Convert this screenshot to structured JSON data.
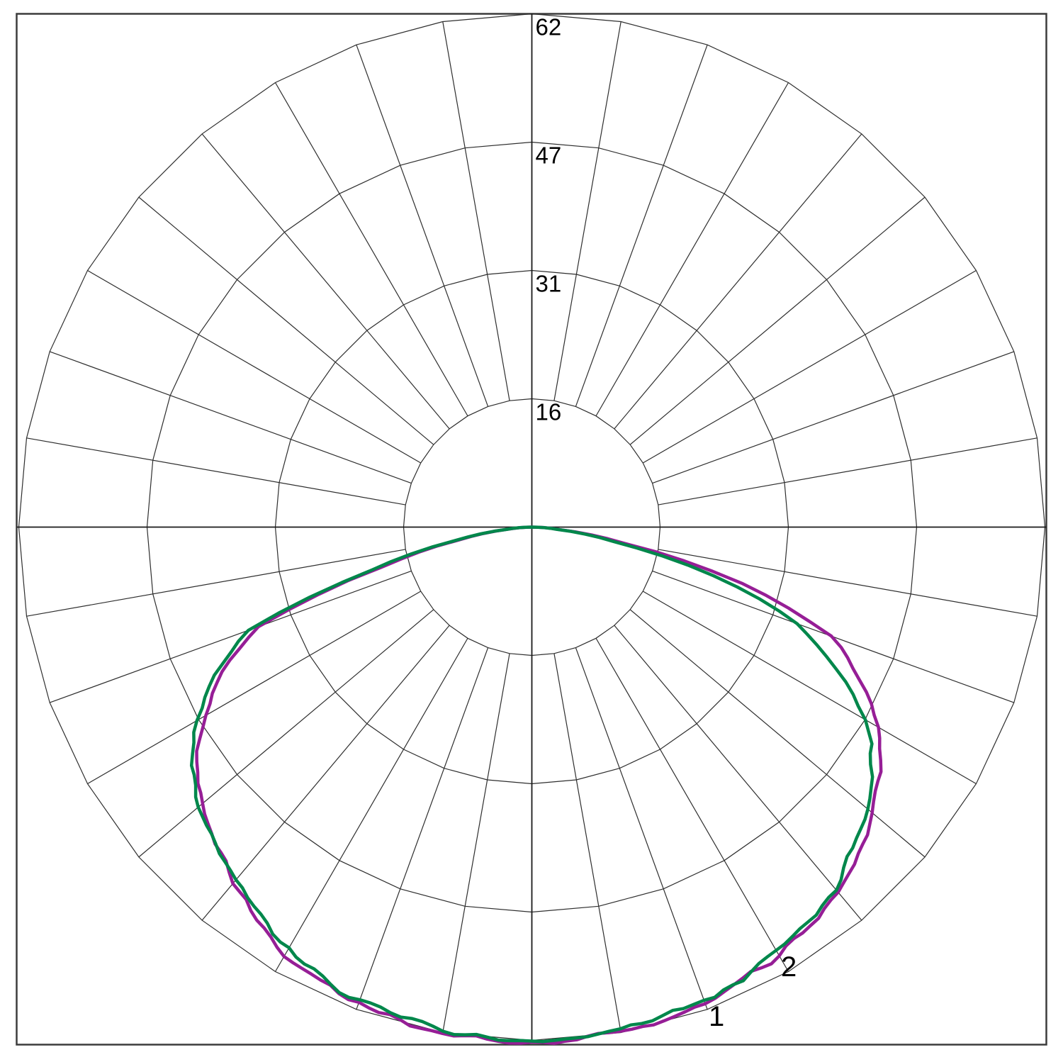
{
  "page": {
    "background": "#ffffff",
    "grid_color": "#2e2e2e",
    "axis_color": "#1a1a1a",
    "frame_color": "#3c3c3c"
  },
  "chart_data": {
    "type": "polar",
    "subtype": "photometric-intensity-distribution",
    "title": "",
    "gamma_zero_direction": "down",
    "rmax": 62,
    "ring_values": [
      15.5,
      31,
      46.5,
      62
    ],
    "ring_labels": [
      "16",
      "31",
      "47",
      "62"
    ],
    "spoke_step_deg": 10,
    "ring_facet_step_deg": 10,
    "legend_position": "none",
    "grid_on": true,
    "noise_amplitude": 0.32,
    "series": [
      {
        "name": "1",
        "color": "#961E96",
        "seed": 7,
        "keypoints": [
          [
            -90,
            0
          ],
          [
            -85,
            2.8
          ],
          [
            -80,
            9
          ],
          [
            -75,
            19
          ],
          [
            -70,
            35.3
          ],
          [
            -65,
            41.2
          ],
          [
            -60,
            45.8
          ],
          [
            -55,
            49.5
          ],
          [
            -50,
            51.8
          ],
          [
            -45,
            53.8
          ],
          [
            -40,
            56.3
          ],
          [
            -35,
            57.9
          ],
          [
            -30,
            59.6
          ],
          [
            -25,
            60.6
          ],
          [
            -20,
            61.3
          ],
          [
            -15,
            61.7
          ],
          [
            -10,
            61.9
          ],
          [
            -5,
            62
          ],
          [
            0,
            62
          ],
          [
            5,
            62
          ],
          [
            10,
            61.8
          ],
          [
            15,
            61.5
          ],
          [
            20,
            61.1
          ],
          [
            25,
            60.5
          ],
          [
            30,
            59.6
          ],
          [
            35,
            58.6
          ],
          [
            40,
            57.3
          ],
          [
            45,
            55.8
          ],
          [
            50,
            53.8
          ],
          [
            55,
            51.2
          ],
          [
            60,
            48.1
          ],
          [
            65,
            43.8
          ],
          [
            70,
            38.5
          ],
          [
            75,
            26.5
          ],
          [
            80,
            11.5
          ],
          [
            85,
            3.2
          ],
          [
            90,
            0
          ]
        ]
      },
      {
        "name": "2",
        "color": "#00874B",
        "seed": 13,
        "keypoints": [
          [
            -90,
            0
          ],
          [
            -85,
            3
          ],
          [
            -80,
            9.5
          ],
          [
            -75,
            20
          ],
          [
            -70,
            36.5
          ],
          [
            -65,
            42.3
          ],
          [
            -60,
            46.8
          ],
          [
            -55,
            50.5
          ],
          [
            -50,
            52.5
          ],
          [
            -45,
            54.2
          ],
          [
            -40,
            55.8
          ],
          [
            -35,
            57.4
          ],
          [
            -30,
            59
          ],
          [
            -25,
            60.1
          ],
          [
            -20,
            60.8
          ],
          [
            -15,
            61.3
          ],
          [
            -10,
            61.6
          ],
          [
            -5,
            61.8
          ],
          [
            0,
            61.9
          ],
          [
            5,
            61.8
          ],
          [
            10,
            61.6
          ],
          [
            15,
            61.3
          ],
          [
            20,
            60.8
          ],
          [
            25,
            60.1
          ],
          [
            30,
            59.2
          ],
          [
            35,
            58.3
          ],
          [
            40,
            56.9
          ],
          [
            45,
            55
          ],
          [
            50,
            52.8
          ],
          [
            55,
            50
          ],
          [
            60,
            46.9
          ],
          [
            65,
            40.8
          ],
          [
            70,
            34.3
          ],
          [
            75,
            22.5
          ],
          [
            80,
            10
          ],
          [
            85,
            3
          ],
          [
            90,
            0
          ]
        ]
      }
    ],
    "curve_labels": [
      {
        "text": "1",
        "x": 1000,
        "y": 1447
      },
      {
        "text": "2",
        "x": 1102,
        "y": 1377
      }
    ]
  }
}
